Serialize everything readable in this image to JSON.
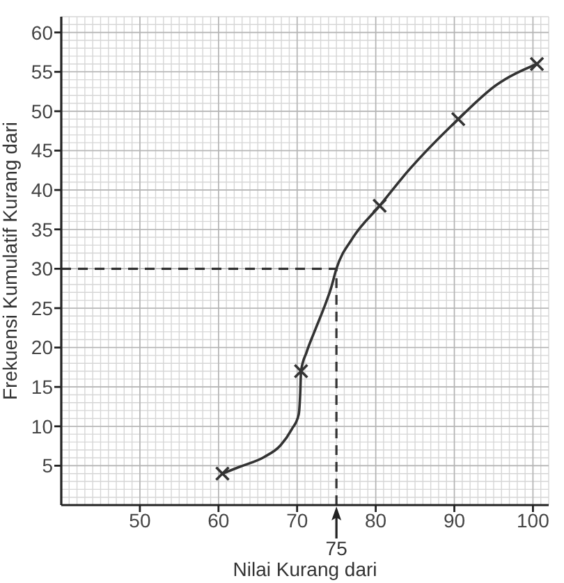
{
  "chart_data": {
    "type": "line",
    "xlabel": "Nilai Kurang dari",
    "ylabel": "Frekuensi Kumulatif Kurang dari",
    "xlim": [
      40,
      102
    ],
    "ylim": [
      0,
      62
    ],
    "xticks": [
      50,
      60,
      70,
      80,
      90,
      100
    ],
    "yticks": [
      5,
      10,
      15,
      20,
      25,
      30,
      35,
      40,
      45,
      50,
      55,
      60
    ],
    "grid": true,
    "series": [
      {
        "color": "#333333",
        "marker": "none",
        "x": [
          60.5,
          62.8,
          65.8,
          67.9,
          69.3,
          70.2,
          70.4,
          70.5,
          71.2,
          72.2,
          73.4,
          74.3,
          75,
          77,
          80.5,
          84.1,
          90.5,
          95.3,
          100.5
        ],
        "values": [
          4,
          4.9,
          6.1,
          7.6,
          9.6,
          11.5,
          14.3,
          17,
          19.4,
          22,
          25,
          27.5,
          30,
          33.8,
          38,
          42.4,
          49,
          53.3,
          56
        ]
      },
      {
        "type": "scatter",
        "color": "#333333",
        "marker": "cross",
        "x": [
          60.5,
          70.5,
          80.5,
          90.5,
          100.5
        ],
        "values": [
          4,
          17,
          38,
          49,
          56
        ]
      }
    ],
    "ref_lines": [
      {
        "axis": "y",
        "value": 30,
        "line_style": "dashed",
        "color": "#333333"
      },
      {
        "axis": "x",
        "value": 75,
        "line_style": "dashed",
        "color": "#333333"
      }
    ],
    "annotations": [
      {
        "text": "75",
        "x": 75,
        "y": 0
      }
    ]
  }
}
